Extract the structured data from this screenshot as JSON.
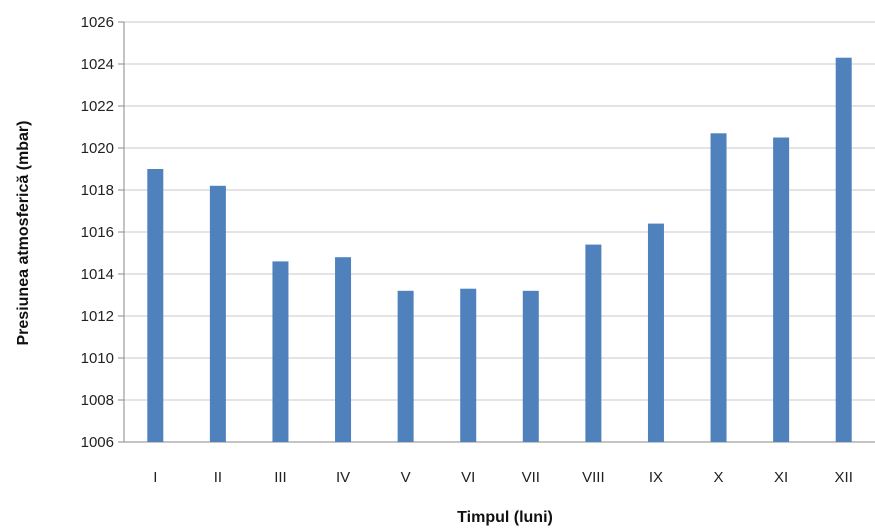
{
  "chart_data": {
    "type": "bar",
    "categories": [
      "I",
      "II",
      "III",
      "IV",
      "V",
      "VI",
      "VII",
      "VIII",
      "IX",
      "X",
      "XI",
      "XII"
    ],
    "values": [
      1019.0,
      1018.2,
      1014.6,
      1014.8,
      1013.2,
      1013.3,
      1013.2,
      1015.4,
      1016.4,
      1020.7,
      1020.5,
      1024.3
    ],
    "title": "",
    "xlabel": "Timpul (luni)",
    "ylabel": "Presiunea atmosferică (mbar)",
    "ylim": [
      1006,
      1026
    ],
    "yticks": [
      1006,
      1008,
      1010,
      1012,
      1014,
      1016,
      1018,
      1020,
      1022,
      1024,
      1026
    ],
    "grid": true,
    "legend": "none",
    "bar_color": "#4f81bd"
  }
}
